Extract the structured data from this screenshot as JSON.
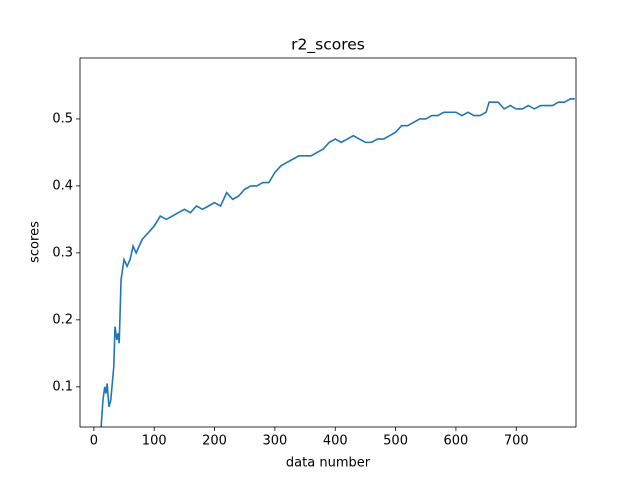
{
  "chart_data": {
    "type": "line",
    "title": "r2_scores",
    "x_label": "data number",
    "y_label": "scores",
    "x": [
      12,
      15,
      18,
      20,
      22,
      25,
      28,
      30,
      33,
      35,
      38,
      40,
      42,
      45,
      50,
      55,
      60,
      65,
      70,
      80,
      90,
      100,
      110,
      120,
      130,
      140,
      150,
      160,
      170,
      180,
      190,
      200,
      210,
      220,
      230,
      240,
      250,
      260,
      270,
      280,
      290,
      300,
      310,
      320,
      330,
      340,
      350,
      360,
      370,
      380,
      390,
      400,
      410,
      420,
      430,
      440,
      450,
      460,
      470,
      480,
      490,
      500,
      510,
      520,
      530,
      540,
      550,
      560,
      570,
      580,
      590,
      600,
      610,
      620,
      630,
      640,
      650,
      655,
      660,
      670,
      680,
      690,
      700,
      710,
      720,
      730,
      740,
      750,
      760,
      770,
      780,
      790,
      797
    ],
    "series": [
      {
        "name": "r2_scores",
        "color": "#1f77b4",
        "values": [
          0.04,
          0.08,
          0.1,
          0.09,
          0.105,
          0.07,
          0.08,
          0.1,
          0.13,
          0.19,
          0.17,
          0.18,
          0.165,
          0.26,
          0.29,
          0.28,
          0.29,
          0.31,
          0.3,
          0.32,
          0.33,
          0.34,
          0.355,
          0.35,
          0.355,
          0.36,
          0.365,
          0.36,
          0.37,
          0.365,
          0.37,
          0.375,
          0.37,
          0.39,
          0.38,
          0.385,
          0.395,
          0.4,
          0.4,
          0.405,
          0.405,
          0.42,
          0.43,
          0.435,
          0.44,
          0.445,
          0.445,
          0.445,
          0.45,
          0.455,
          0.465,
          0.47,
          0.465,
          0.47,
          0.475,
          0.47,
          0.465,
          0.465,
          0.47,
          0.47,
          0.475,
          0.48,
          0.49,
          0.49,
          0.495,
          0.5,
          0.5,
          0.505,
          0.505,
          0.51,
          0.51,
          0.51,
          0.505,
          0.51,
          0.505,
          0.505,
          0.51,
          0.525,
          0.525,
          0.525,
          0.515,
          0.52,
          0.515,
          0.515,
          0.52,
          0.515,
          0.52,
          0.52,
          0.52,
          0.525,
          0.525,
          0.53,
          0.53
        ]
      }
    ],
    "xlim": [
      -23,
      799
    ],
    "ylim": [
      0.04,
      0.591
    ],
    "xticks": [
      0,
      100,
      200,
      300,
      400,
      500,
      600,
      700
    ],
    "yticks": [
      0.1,
      0.2,
      0.3,
      0.4,
      0.5
    ],
    "grid": false
  }
}
